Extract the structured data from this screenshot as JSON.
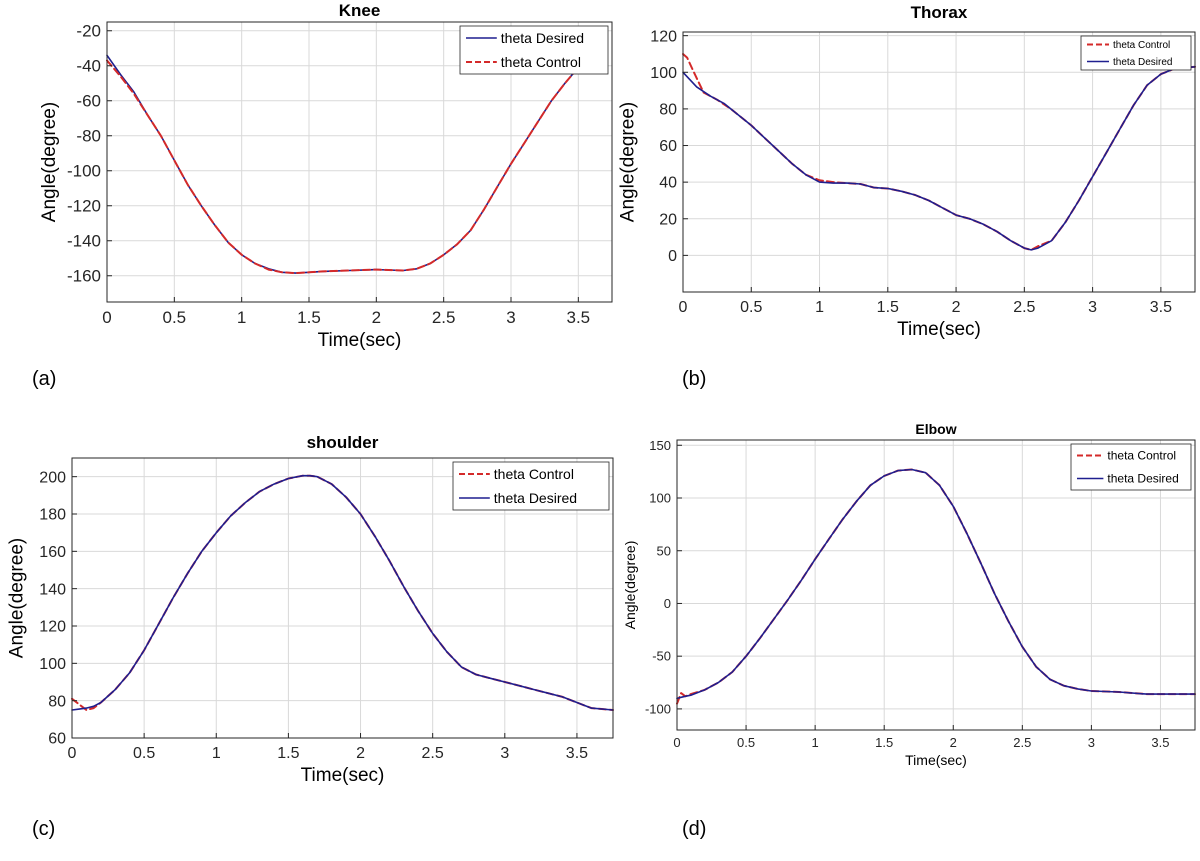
{
  "chart_data": [
    {
      "type": "line",
      "panel_label": "(a)",
      "title": "Knee",
      "xlabel": "Time(sec)",
      "ylabel": "Angle(degree)",
      "xlim": [
        0,
        3.75
      ],
      "ylim": [
        -175,
        -15
      ],
      "xticks": [
        0,
        0.5,
        1,
        1.5,
        2,
        2.5,
        3,
        3.5
      ],
      "xtick_labels": [
        "0",
        "0.5",
        "1",
        "1.5",
        "2",
        "2.5",
        "3",
        "3.5"
      ],
      "yticks": [
        -160,
        -140,
        -120,
        -100,
        -80,
        -60,
        -40,
        -20
      ],
      "ytick_labels": [
        "-160",
        "-140",
        "-120",
        "-100",
        "-80",
        "-60",
        "-40",
        "-20"
      ],
      "grid": true,
      "legend_position": "top-right",
      "series": [
        {
          "name": "theta Desired",
          "color": "#1f1f8f",
          "style": "solid",
          "x": [
            0,
            0.1,
            0.2,
            0.3,
            0.4,
            0.5,
            0.6,
            0.7,
            0.8,
            0.9,
            1.0,
            1.1,
            1.2,
            1.3,
            1.4,
            1.5,
            1.6,
            1.8,
            2.0,
            2.2,
            2.3,
            2.4,
            2.5,
            2.6,
            2.7,
            2.8,
            2.9,
            3.0,
            3.1,
            3.2,
            3.3,
            3.4,
            3.5
          ],
          "y": [
            -34,
            -45,
            -55,
            -68,
            -80,
            -94,
            -108,
            -120,
            -131,
            -141,
            -148,
            -153,
            -156,
            -158,
            -158.5,
            -158,
            -157.5,
            -157,
            -156.5,
            -157,
            -156,
            -153,
            -148,
            -142,
            -134,
            -122,
            -109,
            -96,
            -84,
            -72,
            -60,
            -50,
            -41
          ]
        },
        {
          "name": "theta Control",
          "color": "#d42a2a",
          "style": "dashed",
          "x": [
            0,
            0.1,
            0.2,
            0.3,
            0.4,
            0.5,
            0.6,
            0.7,
            0.8,
            0.9,
            1.0,
            1.1,
            1.2,
            1.3,
            1.4,
            1.5,
            1.6,
            1.8,
            2.0,
            2.2,
            2.3,
            2.4,
            2.5,
            2.6,
            2.7,
            2.8,
            2.9,
            3.0,
            3.1,
            3.2,
            3.3,
            3.4,
            3.5
          ],
          "y": [
            -37,
            -46,
            -56,
            -68,
            -80,
            -94,
            -108,
            -120,
            -131,
            -141,
            -148,
            -153,
            -156.5,
            -158,
            -158.5,
            -158,
            -157.5,
            -157,
            -156.5,
            -157,
            -156,
            -153,
            -148,
            -142,
            -134,
            -122,
            -109,
            -96,
            -84,
            -72,
            -60,
            -50,
            -41
          ]
        }
      ]
    },
    {
      "type": "line",
      "panel_label": "(b)",
      "title": "Thorax",
      "xlabel": "Time(sec)",
      "ylabel": "Angle(degree)",
      "xlim": [
        0,
        3.75
      ],
      "ylim": [
        -20,
        122
      ],
      "xticks": [
        0,
        0.5,
        1,
        1.5,
        2,
        2.5,
        3,
        3.5
      ],
      "xtick_labels": [
        "0",
        "0.5",
        "1",
        "1.5",
        "2",
        "2.5",
        "3",
        "3.5"
      ],
      "yticks": [
        0,
        20,
        40,
        60,
        80,
        100,
        120
      ],
      "ytick_labels": [
        "0",
        "20",
        "40",
        "60",
        "80",
        "100",
        "120"
      ],
      "grid": true,
      "legend_position": "top-right",
      "series": [
        {
          "name": "theta Control",
          "color": "#d42a2a",
          "style": "dashed",
          "x": [
            0,
            0.03,
            0.08,
            0.15,
            0.25,
            0.35,
            0.5,
            0.6,
            0.7,
            0.8,
            0.9,
            1.0,
            1.1,
            1.2,
            1.3,
            1.4,
            1.5,
            1.6,
            1.7,
            1.8,
            1.9,
            2.0,
            2.1,
            2.2,
            2.3,
            2.4,
            2.5,
            2.55,
            2.6,
            2.7,
            2.8,
            2.9,
            3.0,
            3.1,
            3.2,
            3.3,
            3.4,
            3.5,
            3.6,
            3.75
          ],
          "y": [
            110,
            108,
            100,
            89,
            85,
            80,
            71,
            64,
            57,
            50,
            44,
            41,
            40,
            39.5,
            39,
            37,
            36.5,
            35,
            33,
            30,
            26,
            22,
            20,
            17,
            13,
            8,
            4,
            3,
            5,
            8,
            18,
            30,
            43,
            56,
            69,
            82,
            93,
            99,
            102,
            103
          ]
        },
        {
          "name": "theta Desired",
          "color": "#1f1f8f",
          "style": "solid",
          "x": [
            0,
            0.05,
            0.1,
            0.2,
            0.3,
            0.4,
            0.5,
            0.6,
            0.7,
            0.8,
            0.9,
            1.0,
            1.1,
            1.2,
            1.3,
            1.4,
            1.5,
            1.6,
            1.7,
            1.8,
            1.9,
            2.0,
            2.1,
            2.2,
            2.3,
            2.4,
            2.5,
            2.55,
            2.6,
            2.7,
            2.8,
            2.9,
            3.0,
            3.1,
            3.2,
            3.3,
            3.4,
            3.5,
            3.6,
            3.75
          ],
          "y": [
            100,
            96,
            92,
            87,
            83,
            77,
            71,
            64,
            57,
            50,
            44,
            40,
            39.5,
            39.5,
            39,
            37,
            36.5,
            35,
            33,
            30,
            26,
            22,
            20,
            17,
            13,
            8,
            4,
            3,
            4,
            8,
            18,
            30,
            43,
            56,
            69,
            82,
            93,
            99,
            102,
            103
          ]
        }
      ]
    },
    {
      "type": "line",
      "panel_label": "(c)",
      "title": "shoulder",
      "xlabel": "Time(sec)",
      "ylabel": "Angle(degree)",
      "xlim": [
        0,
        3.75
      ],
      "ylim": [
        60,
        210
      ],
      "xticks": [
        0,
        0.5,
        1,
        1.5,
        2,
        2.5,
        3,
        3.5
      ],
      "xtick_labels": [
        "0",
        "0.5",
        "1",
        "1.5",
        "2",
        "2.5",
        "3",
        "3.5"
      ],
      "yticks": [
        60,
        80,
        100,
        120,
        140,
        160,
        180,
        200
      ],
      "ytick_labels": [
        "60",
        "80",
        "100",
        "120",
        "140",
        "160",
        "180",
        "200"
      ],
      "grid": true,
      "legend_position": "top-right",
      "series": [
        {
          "name": "theta Control",
          "color": "#d42a2a",
          "style": "dashed",
          "x": [
            0,
            0.05,
            0.1,
            0.15,
            0.2,
            0.3,
            0.4,
            0.5,
            0.6,
            0.7,
            0.8,
            0.9,
            1.0,
            1.1,
            1.2,
            1.3,
            1.4,
            1.5,
            1.6,
            1.65,
            1.7,
            1.8,
            1.9,
            2.0,
            2.1,
            2.2,
            2.3,
            2.4,
            2.5,
            2.6,
            2.7,
            2.8,
            2.9,
            3.0,
            3.1,
            3.2,
            3.3,
            3.4,
            3.5,
            3.6,
            3.75
          ],
          "y": [
            81,
            78,
            75,
            76,
            79,
            86,
            95,
            107,
            121,
            135,
            148,
            160,
            170,
            179,
            186,
            192,
            196,
            199,
            200.5,
            200.5,
            200,
            196,
            189,
            180,
            168,
            155,
            141,
            128,
            116,
            106,
            98,
            94,
            92,
            90,
            88,
            86,
            84,
            82,
            79,
            76,
            75
          ]
        },
        {
          "name": "theta Desired",
          "color": "#1f1f8f",
          "style": "solid",
          "x": [
            0,
            0.05,
            0.1,
            0.15,
            0.2,
            0.3,
            0.4,
            0.5,
            0.6,
            0.7,
            0.8,
            0.9,
            1.0,
            1.1,
            1.2,
            1.3,
            1.4,
            1.5,
            1.6,
            1.65,
            1.7,
            1.8,
            1.9,
            2.0,
            2.1,
            2.2,
            2.3,
            2.4,
            2.5,
            2.6,
            2.7,
            2.8,
            2.9,
            3.0,
            3.1,
            3.2,
            3.3,
            3.4,
            3.5,
            3.6,
            3.75
          ],
          "y": [
            75,
            75.5,
            76,
            77,
            79,
            86,
            95,
            107,
            121,
            135,
            148,
            160,
            170,
            179,
            186,
            192,
            196,
            199,
            200.5,
            200.5,
            200,
            196,
            189,
            180,
            168,
            155,
            141,
            128,
            116,
            106,
            98,
            94,
            92,
            90,
            88,
            86,
            84,
            82,
            79,
            76,
            75
          ]
        }
      ]
    },
    {
      "type": "line",
      "panel_label": "(d)",
      "title": "Elbow",
      "xlabel": "Time(sec)",
      "ylabel": "Angle(degree)",
      "xlim": [
        0,
        3.75
      ],
      "ylim": [
        -120,
        155
      ],
      "xticks": [
        0,
        0.5,
        1,
        1.5,
        2,
        2.5,
        3,
        3.5
      ],
      "xtick_labels": [
        "0",
        "0.5",
        "1",
        "1.5",
        "2",
        "2.5",
        "3",
        "3.5"
      ],
      "yticks": [
        -100,
        -50,
        0,
        50,
        100,
        150
      ],
      "ytick_labels": [
        "-100",
        "-50",
        "0",
        "50",
        "100",
        "150"
      ],
      "grid": true,
      "legend_position": "top-right",
      "series": [
        {
          "name": "theta Control",
          "color": "#d42a2a",
          "style": "dashed",
          "x": [
            0,
            0.03,
            0.06,
            0.1,
            0.2,
            0.3,
            0.4,
            0.5,
            0.6,
            0.7,
            0.8,
            0.9,
            1.0,
            1.1,
            1.2,
            1.3,
            1.4,
            1.5,
            1.6,
            1.7,
            1.8,
            1.9,
            2.0,
            2.1,
            2.2,
            2.3,
            2.4,
            2.5,
            2.6,
            2.7,
            2.8,
            2.9,
            3.0,
            3.2,
            3.4,
            3.6,
            3.75
          ],
          "y": [
            -95,
            -85,
            -88,
            -86,
            -82,
            -75,
            -65,
            -50,
            -33,
            -15,
            3,
            22,
            42,
            61,
            80,
            97,
            112,
            121,
            126,
            127,
            124,
            112,
            92,
            66,
            38,
            9,
            -17,
            -41,
            -60,
            -72,
            -78,
            -81,
            -83,
            -84,
            -86,
            -86,
            -86
          ]
        },
        {
          "name": "theta Desired",
          "color": "#1f1f8f",
          "style": "solid",
          "x": [
            0,
            0.03,
            0.06,
            0.1,
            0.2,
            0.3,
            0.4,
            0.5,
            0.6,
            0.7,
            0.8,
            0.9,
            1.0,
            1.1,
            1.2,
            1.3,
            1.4,
            1.5,
            1.6,
            1.7,
            1.8,
            1.9,
            2.0,
            2.1,
            2.2,
            2.3,
            2.4,
            2.5,
            2.6,
            2.7,
            2.8,
            2.9,
            3.0,
            3.2,
            3.4,
            3.6,
            3.75
          ],
          "y": [
            -90,
            -89,
            -88,
            -87,
            -82,
            -75,
            -65,
            -50,
            -33,
            -15,
            3,
            22,
            42,
            61,
            80,
            97,
            112,
            121,
            126,
            127,
            124,
            112,
            92,
            66,
            38,
            9,
            -17,
            -41,
            -60,
            -72,
            -78,
            -81,
            -83,
            -84,
            -86,
            -86,
            -86
          ]
        }
      ]
    }
  ]
}
